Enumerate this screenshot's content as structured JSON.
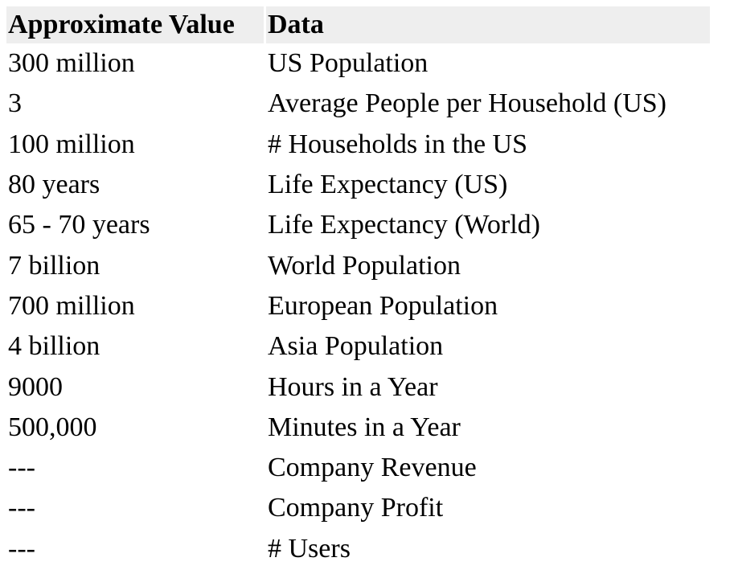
{
  "table": {
    "headers": [
      "Approximate Value",
      "Data"
    ],
    "rows": [
      {
        "value": "300 million",
        "data": "US Population"
      },
      {
        "value": "3",
        "data": "Average People per Household (US)"
      },
      {
        "value": "100 million",
        "data": "# Households in the US"
      },
      {
        "value": "80 years",
        "data": "Life Expectancy (US)"
      },
      {
        "value": "65 - 70 years",
        "data": "Life Expectancy (World)"
      },
      {
        "value": "7 billion",
        "data": "World Population"
      },
      {
        "value": "700 million",
        "data": "European Population"
      },
      {
        "value": "4 billion",
        "data": "Asia Population"
      },
      {
        "value": "9000",
        "data": "Hours in a Year"
      },
      {
        "value": "500,000",
        "data": "Minutes in a Year"
      },
      {
        "value": "---",
        "data": "Company Revenue"
      },
      {
        "value": "---",
        "data": "Company Profit"
      },
      {
        "value": "---",
        "data": "# Users"
      }
    ]
  }
}
